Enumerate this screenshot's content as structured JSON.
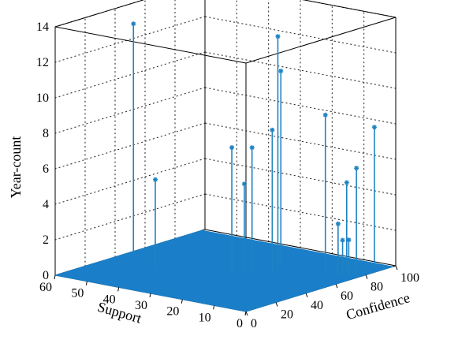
{
  "chart_data": {
    "type": "scatter",
    "style": "3d-stem",
    "xlabel": "Support",
    "ylabel": "Confidence",
    "zlabel": "Year-count",
    "x_ticks": [
      0,
      10,
      20,
      30,
      40,
      50,
      60
    ],
    "y_ticks": [
      0,
      20,
      40,
      60,
      80,
      100
    ],
    "z_ticks": [
      0,
      2,
      4,
      6,
      8,
      10,
      12,
      14
    ],
    "xlim": [
      0,
      60
    ],
    "ylim": [
      0,
      100
    ],
    "zlim": [
      0,
      14
    ],
    "grid": true,
    "colors": {
      "stem": "#1f83c3",
      "floor": "#1a7fc8",
      "grid": "#333333"
    },
    "points": [
      {
        "support": 58,
        "confidence": 48,
        "year_count": 13
      },
      {
        "support": 45,
        "confidence": 35,
        "year_count": 5
      },
      {
        "support": 22,
        "confidence": 70,
        "year_count": 11
      },
      {
        "support": 28,
        "confidence": 50,
        "year_count": 7
      },
      {
        "support": 24,
        "confidence": 55,
        "year_count": 7
      },
      {
        "support": 20,
        "confidence": 60,
        "year_count": 8
      },
      {
        "support": 25,
        "confidence": 52,
        "year_count": 5
      },
      {
        "support": 22,
        "confidence": 68,
        "year_count": 13
      },
      {
        "support": 8,
        "confidence": 70,
        "year_count": 9
      },
      {
        "support": 6,
        "confidence": 80,
        "year_count": 5
      },
      {
        "support": 4,
        "confidence": 70,
        "year_count": 3
      },
      {
        "support": 4,
        "confidence": 73,
        "year_count": 2
      },
      {
        "support": 3,
        "confidence": 75,
        "year_count": 2
      },
      {
        "support": 2,
        "confidence": 78,
        "year_count": 6
      },
      {
        "support": 2,
        "confidence": 90,
        "year_count": 8
      }
    ]
  }
}
